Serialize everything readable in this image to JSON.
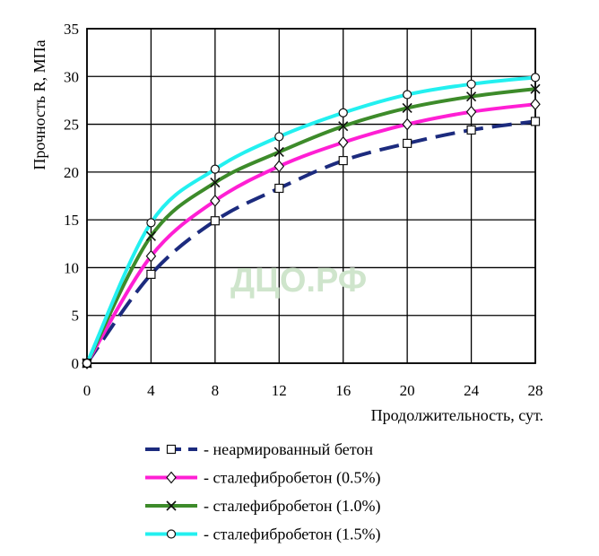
{
  "watermark": "ДЦО.РФ",
  "chart_data": {
    "type": "line",
    "xlabel": "Продолжительность, сут.",
    "ylabel": "Прочность R, МПа",
    "xlim": [
      0,
      28
    ],
    "ylim": [
      0,
      35
    ],
    "xticks": [
      0,
      4,
      8,
      12,
      16,
      20,
      24,
      28
    ],
    "yticks": [
      0,
      5,
      10,
      15,
      20,
      25,
      30,
      35
    ],
    "grid": true,
    "legend_position": "bottom",
    "x": [
      0,
      4,
      8,
      12,
      16,
      20,
      24,
      28
    ],
    "series": [
      {
        "name": "- неармированный бетон",
        "marker": "square",
        "color": "#1c2b7e",
        "dash": "dashed",
        "values": [
          0,
          9.3,
          14.9,
          18.3,
          21.2,
          23.0,
          24.4,
          25.3
        ]
      },
      {
        "name": "- сталефибробетон (0.5%)",
        "marker": "diamond",
        "color": "#ff1fd4",
        "dash": "solid",
        "values": [
          0,
          11.2,
          17.0,
          20.6,
          23.1,
          25.0,
          26.3,
          27.1
        ]
      },
      {
        "name": "- сталефибробетон (1.0%)",
        "marker": "x",
        "color": "#3d8b2a",
        "dash": "solid",
        "values": [
          0,
          13.3,
          18.9,
          22.1,
          24.8,
          26.7,
          27.9,
          28.7
        ]
      },
      {
        "name": "- сталефибробетон (1.5%)",
        "marker": "circle",
        "color": "#23f0f0",
        "dash": "solid",
        "values": [
          0,
          14.7,
          20.3,
          23.7,
          26.2,
          28.1,
          29.2,
          29.9
        ]
      }
    ]
  }
}
